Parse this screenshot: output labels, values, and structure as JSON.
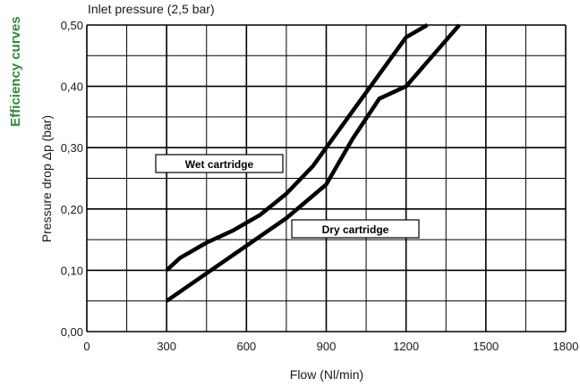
{
  "side_title": "Efficiency curves",
  "chart_data": {
    "type": "line",
    "subtitle": "Inlet pressure (2,5 bar)",
    "xlabel": "Flow (Nl/min)",
    "ylabel": "Pressure drop Δp (bar)",
    "xlim": [
      0,
      1800
    ],
    "ylim": [
      0,
      0.5
    ],
    "xticks": [
      0,
      300,
      600,
      900,
      1200,
      1500,
      1800
    ],
    "xtick_labels": [
      "0",
      "300",
      "600",
      "900",
      "1200",
      "1500",
      "1800"
    ],
    "x_minor_grid": [
      150,
      450,
      750,
      1050,
      1350,
      1650
    ],
    "yticks": [
      0,
      0.1,
      0.2,
      0.3,
      0.4,
      0.5
    ],
    "ytick_labels": [
      "0,00",
      "0,10",
      "0,20",
      "0,30",
      "0,40",
      "0,50"
    ],
    "y_minor_grid": [
      0.05,
      0.15,
      0.25,
      0.35,
      0.45
    ],
    "grid": true,
    "line_color": "#000000",
    "series": [
      {
        "name": "Wet cartridge",
        "x": [
          300,
          350,
          450,
          550,
          650,
          750,
          850,
          900,
          1000,
          1100,
          1200,
          1280
        ],
        "y": [
          0.1,
          0.12,
          0.145,
          0.165,
          0.19,
          0.225,
          0.27,
          0.3,
          0.36,
          0.42,
          0.48,
          0.5
        ]
      },
      {
        "name": "Dry cartridge",
        "x": [
          300,
          450,
          600,
          750,
          900,
          1000,
          1100,
          1200,
          1300,
          1400
        ],
        "y": [
          0.05,
          0.095,
          0.14,
          0.185,
          0.24,
          0.315,
          0.38,
          0.4,
          0.45,
          0.5
        ]
      }
    ]
  }
}
